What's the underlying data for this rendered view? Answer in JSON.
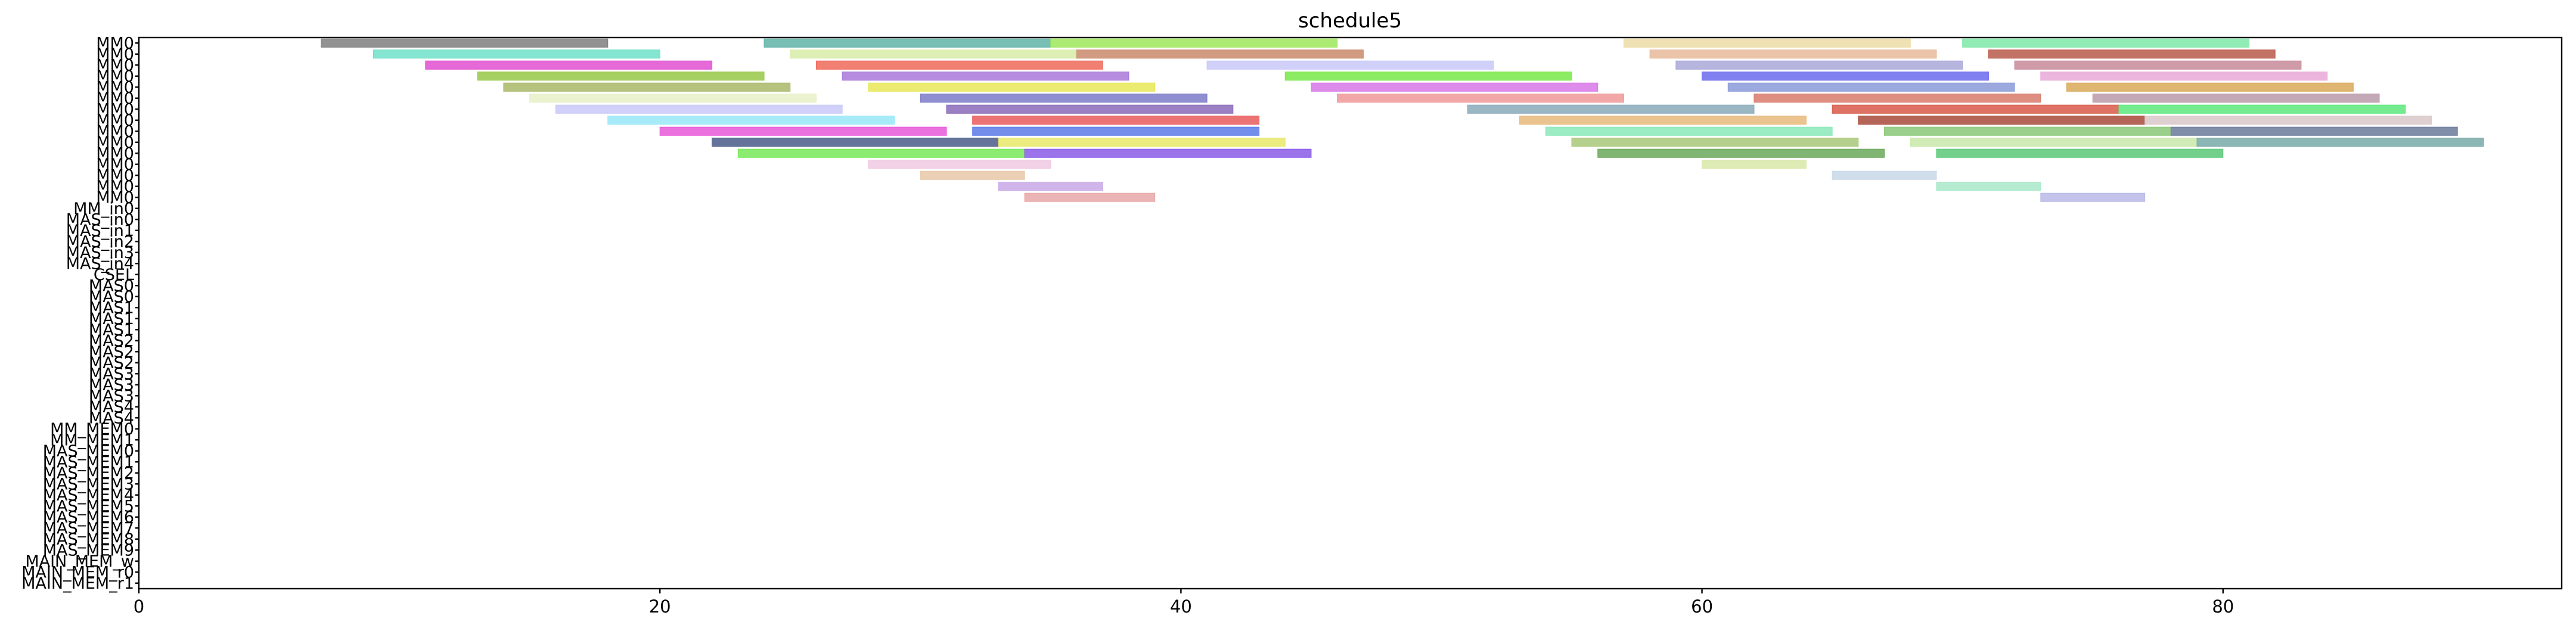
{
  "chart_data": {
    "type": "gantt",
    "title": "schedule5",
    "xlim": [
      0,
      93
    ],
    "x_ticks": [
      0,
      20,
      40,
      60,
      80
    ],
    "grid": false,
    "legend": "none",
    "rows": [
      "MM0",
      "MM0",
      "MM0",
      "MM0",
      "MM0",
      "MM0",
      "MM0",
      "MM0",
      "MM0",
      "MM0",
      "MM0",
      "MM0",
      "MM0",
      "MM0",
      "MM0",
      "MM_in0",
      "MAS_in0",
      "MAS_in1",
      "MAS_in2",
      "MAS_in3",
      "MAS_in4",
      "CSEL",
      "MAS0",
      "MAS0",
      "MAS1",
      "MAS1",
      "MAS1",
      "MAS2",
      "MAS2",
      "MAS2",
      "MAS3",
      "MAS3",
      "MAS3",
      "MAS4",
      "MAS4",
      "MM_MEM0",
      "MM_MEM1",
      "MAS_MEM0",
      "MAS_MEM1",
      "MAS_MEM2",
      "MAS_MEM3",
      "MAS_MEM4",
      "MAS_MEM5",
      "MAS_MEM6",
      "MAS_MEM7",
      "MAS_MEM8",
      "MAS_MEM9",
      "MAIN_MEM_w",
      "MAIN_MEM_r0",
      "MAIN_MEM_r1"
    ],
    "bars": [
      {
        "r": 0,
        "s": 7,
        "e": 18,
        "c": "#7f7f7f"
      },
      {
        "r": 0,
        "s": 24,
        "e": 35,
        "c": "#5fb3a8"
      },
      {
        "r": 0,
        "s": 35,
        "e": 46,
        "c": "#9ee85a"
      },
      {
        "r": 0,
        "s": 57,
        "e": 68,
        "c": "#ecdca6"
      },
      {
        "r": 0,
        "s": 70,
        "e": 81,
        "c": "#7ee8a8"
      },
      {
        "r": 1,
        "s": 9,
        "e": 20,
        "c": "#6ee0c8"
      },
      {
        "r": 1,
        "s": 25,
        "e": 36,
        "c": "#d8eca8"
      },
      {
        "r": 1,
        "s": 36,
        "e": 47,
        "c": "#c88a6a"
      },
      {
        "r": 1,
        "s": 58,
        "e": 69,
        "c": "#e8b89a"
      },
      {
        "r": 1,
        "s": 71,
        "e": 82,
        "c": "#b85a4a"
      },
      {
        "r": 2,
        "s": 11,
        "e": 22,
        "c": "#e050d0"
      },
      {
        "r": 2,
        "s": 26,
        "e": 37,
        "c": "#ee6a5a"
      },
      {
        "r": 2,
        "s": 41,
        "e": 52,
        "c": "#c8c8f8"
      },
      {
        "r": 2,
        "s": 59,
        "e": 70,
        "c": "#a8a8d8"
      },
      {
        "r": 2,
        "s": 72,
        "e": 83,
        "c": "#c88a9a"
      },
      {
        "r": 3,
        "s": 13,
        "e": 24,
        "c": "#98c848"
      },
      {
        "r": 3,
        "s": 27,
        "e": 38,
        "c": "#a878d8"
      },
      {
        "r": 3,
        "s": 44,
        "e": 55,
        "c": "#78e848"
      },
      {
        "r": 3,
        "s": 60,
        "e": 71,
        "c": "#6a6aee"
      },
      {
        "r": 3,
        "s": 73,
        "e": 84,
        "c": "#e8a8d8"
      },
      {
        "r": 4,
        "s": 14,
        "e": 25,
        "c": "#a8b868"
      },
      {
        "r": 4,
        "s": 28,
        "e": 39,
        "c": "#e8e858"
      },
      {
        "r": 4,
        "s": 45,
        "e": 56,
        "c": "#d878e8"
      },
      {
        "r": 4,
        "s": 61,
        "e": 72,
        "c": "#8a9ad8"
      },
      {
        "r": 4,
        "s": 74,
        "e": 85,
        "c": "#d8a858"
      },
      {
        "r": 5,
        "s": 15,
        "e": 26,
        "c": "#e8f0c8"
      },
      {
        "r": 5,
        "s": 30,
        "e": 41,
        "c": "#7a7ac8"
      },
      {
        "r": 5,
        "s": 46,
        "e": 57,
        "c": "#f09898"
      },
      {
        "r": 5,
        "s": 62,
        "e": 73,
        "c": "#d87a6a"
      },
      {
        "r": 5,
        "s": 75,
        "e": 86,
        "c": "#b89aa8"
      },
      {
        "r": 6,
        "s": 16,
        "e": 27,
        "c": "#c8c8f8"
      },
      {
        "r": 6,
        "s": 31,
        "e": 42,
        "c": "#8a6ab8"
      },
      {
        "r": 6,
        "s": 51,
        "e": 62,
        "c": "#8aaab8"
      },
      {
        "r": 6,
        "s": 65,
        "e": 76,
        "c": "#d85a4a"
      },
      {
        "r": 6,
        "s": 76,
        "e": 87,
        "c": "#5ae87a"
      },
      {
        "r": 7,
        "s": 18,
        "e": 29,
        "c": "#98e8f8"
      },
      {
        "r": 7,
        "s": 32,
        "e": 43,
        "c": "#e85a5a"
      },
      {
        "r": 7,
        "s": 53,
        "e": 64,
        "c": "#e8b87a"
      },
      {
        "r": 7,
        "s": 66,
        "e": 77,
        "c": "#a84a3a"
      },
      {
        "r": 7,
        "s": 77,
        "e": 88,
        "c": "#d8c8c8"
      },
      {
        "r": 8,
        "s": 20,
        "e": 31,
        "c": "#e858d8"
      },
      {
        "r": 8,
        "s": 32,
        "e": 43,
        "c": "#5a7ae8"
      },
      {
        "r": 8,
        "s": 54,
        "e": 65,
        "c": "#8ae8b8"
      },
      {
        "r": 8,
        "s": 67,
        "e": 78,
        "c": "#8ac878"
      },
      {
        "r": 8,
        "s": 78,
        "e": 89,
        "c": "#6a7a9a"
      },
      {
        "r": 9,
        "s": 22,
        "e": 33,
        "c": "#4a5a8a"
      },
      {
        "r": 9,
        "s": 33,
        "e": 44,
        "c": "#e8e868"
      },
      {
        "r": 9,
        "s": 55,
        "e": 66,
        "c": "#a8c878"
      },
      {
        "r": 9,
        "s": 68,
        "e": 79,
        "c": "#c8e8a8"
      },
      {
        "r": 9,
        "s": 79,
        "e": 90,
        "c": "#78a8a8"
      },
      {
        "r": 10,
        "s": 23,
        "e": 34,
        "c": "#78e858"
      },
      {
        "r": 10,
        "s": 34,
        "e": 45,
        "c": "#8a5ae8"
      },
      {
        "r": 10,
        "s": 56,
        "e": 67,
        "c": "#6aa85a"
      },
      {
        "r": 10,
        "s": 69,
        "e": 80,
        "c": "#5ac878"
      },
      {
        "r": 11,
        "s": 28,
        "e": 35,
        "c": "#f0c8e0"
      },
      {
        "r": 11,
        "s": 60,
        "e": 64,
        "c": "#d8e8a8"
      },
      {
        "r": 12,
        "s": 30,
        "e": 34,
        "c": "#e8c8a8"
      },
      {
        "r": 12,
        "s": 65,
        "e": 69,
        "c": "#c8d8e8"
      },
      {
        "r": 13,
        "s": 33,
        "e": 37,
        "c": "#c8a8e8"
      },
      {
        "r": 13,
        "s": 69,
        "e": 73,
        "c": "#a8e8c8"
      },
      {
        "r": 14,
        "s": 34,
        "e": 39,
        "c": "#e8a8a8"
      },
      {
        "r": 14,
        "s": 73,
        "e": 77,
        "c": "#b8b8e8"
      }
    ]
  }
}
